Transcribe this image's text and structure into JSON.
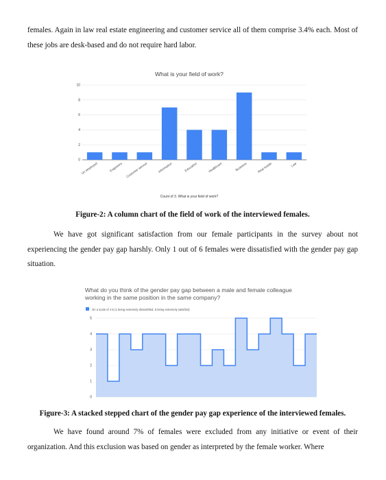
{
  "doc": {
    "para1": "females. Again in law real estate engineering and customer service all of them comprise 3.4% each. Most of these jobs are desk-based and do not require hard labor.",
    "caption2": "Figure-2: A column chart of the field of work of the interviewed females.",
    "para2": "We have got significant satisfaction from our female participants in the survey about not experiencing the gender pay gap harshly. Only 1 out of 6 females were dissatisfied with the gender pay gap situation.",
    "caption3": "Figure-3: A stacked stepped chart of the gender pay gap experience of the interviewed females.",
    "para3": "We have found around 7% of females were excluded from any initiative or event of their organization. And this exclusion was based on gender as interpreted by the female worker. Where"
  },
  "chart_data": [
    {
      "type": "bar",
      "title": "What is your field of work?",
      "xlabel": "Count of 3. What is your field of work?",
      "ylabel": "",
      "categories": [
        "Un employed",
        "Engineers",
        "Customer service",
        "Information",
        "Education",
        "Healthcare",
        "Business",
        "Real estate",
        "Law"
      ],
      "values": [
        1,
        1,
        1,
        7,
        4,
        4,
        9,
        1,
        1
      ],
      "yticks": [
        "0",
        "2",
        "4",
        "6",
        "8",
        "10"
      ],
      "ylim": [
        0,
        10
      ],
      "grid": true,
      "color": "#4285f4"
    },
    {
      "type": "area",
      "title": "What do you think of the gender pay gap between a male and female colleague working in the same position in the same company?",
      "legend": "On a scale of 1-5 (1 being extremely dissatisfied, 5 being extremely satisfied)",
      "legend_position": "top-left",
      "step": true,
      "yticks": [
        "0",
        "1",
        "2",
        "3",
        "4",
        "5"
      ],
      "ylim": [
        0,
        5
      ],
      "grid": true,
      "values": [
        4,
        1,
        4,
        3,
        4,
        4,
        2,
        4,
        4,
        2,
        3,
        2,
        5,
        3,
        4,
        5,
        4,
        2,
        4
      ],
      "color": "#4285f4",
      "fill": "#c6d9f8"
    }
  ]
}
